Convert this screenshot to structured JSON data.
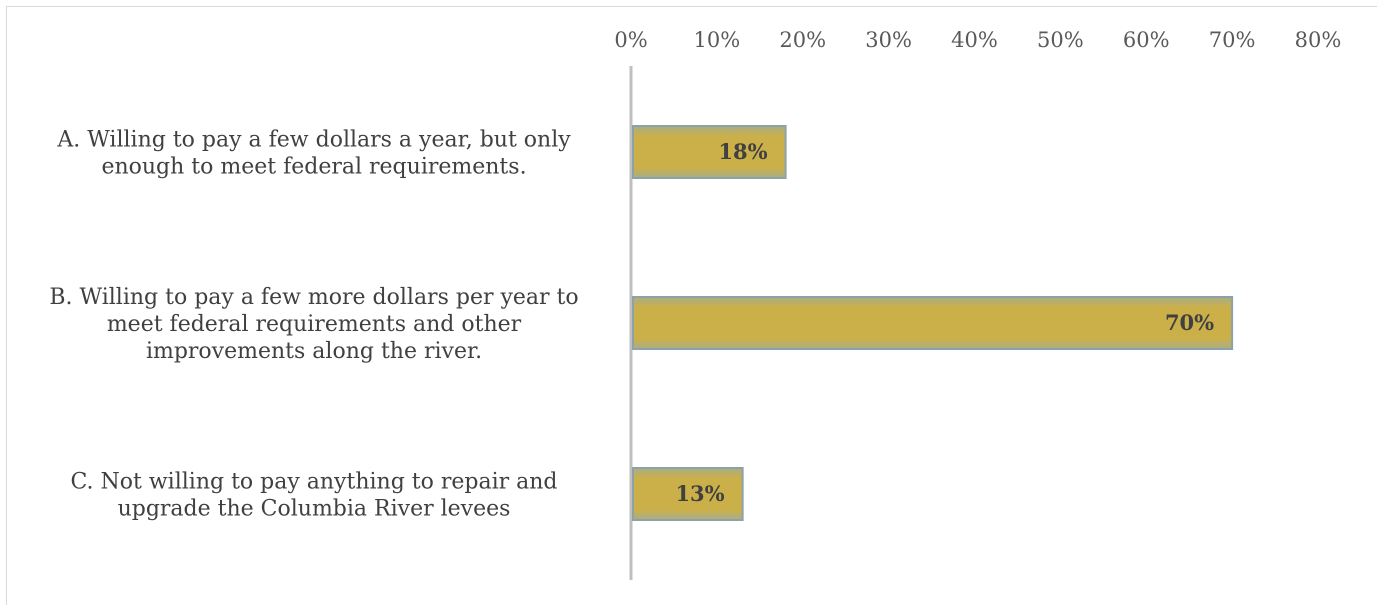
{
  "chart_data": {
    "type": "bar",
    "orientation": "horizontal",
    "title": "",
    "xlabel": "",
    "ylabel": "",
    "xlim": [
      0,
      80
    ],
    "x_ticks": [
      0,
      10,
      20,
      30,
      40,
      50,
      60,
      70,
      80
    ],
    "x_tick_labels": [
      "0%",
      "10%",
      "20%",
      "30%",
      "40%",
      "50%",
      "60%",
      "70%",
      "80%"
    ],
    "axis_position": "top",
    "grid": false,
    "legend": "none",
    "categories": [
      [
        "A. Willing to pay a few dollars a year, but only",
        "enough to meet federal requirements."
      ],
      [
        "B. Willing to pay a few more dollars per year to",
        "meet federal requirements and other",
        "improvements along the river."
      ],
      [
        "C. Not willing to pay anything to repair and",
        "upgrade the Columbia River levees"
      ]
    ],
    "values": [
      18,
      70,
      13
    ],
    "data_labels": [
      "18%",
      "70%",
      "13%"
    ],
    "bar_color": "#c9b04b",
    "bar_edge_color": "#8ba3a8"
  }
}
